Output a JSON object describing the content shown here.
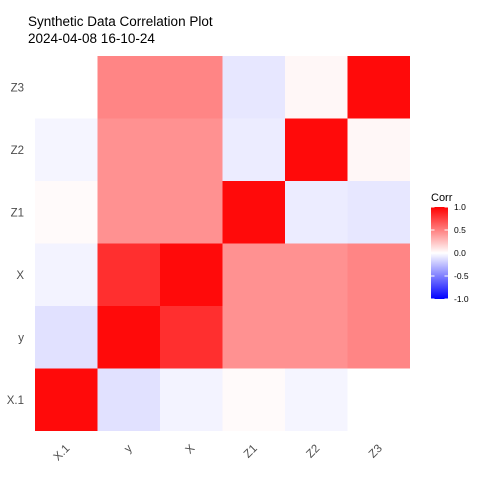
{
  "chart_data": {
    "type": "heatmap",
    "title": "Synthetic Data Correlation Plot",
    "subtitle": "2024-04-08 16-10-24",
    "xlabel": "",
    "ylabel": "",
    "x_categories": [
      "X.1",
      "y",
      "X",
      "Z1",
      "Z2",
      "Z3"
    ],
    "y_categories": [
      "X.1",
      "y",
      "X",
      "Z1",
      "Z2",
      "Z3"
    ],
    "matrix": [
      [
        1.0,
        -0.12,
        -0.05,
        0.02,
        -0.04,
        0.0
      ],
      [
        -0.12,
        1.0,
        0.85,
        0.45,
        0.45,
        0.5
      ],
      [
        -0.05,
        0.85,
        1.0,
        0.45,
        0.45,
        0.5
      ],
      [
        0.02,
        0.45,
        0.45,
        1.0,
        -0.08,
        -0.1
      ],
      [
        -0.04,
        0.45,
        0.45,
        -0.08,
        1.0,
        0.03
      ],
      [
        0.0,
        0.5,
        0.5,
        -0.1,
        0.03,
        1.0
      ]
    ],
    "legend": {
      "title": "Corr",
      "ticks": [
        "1.0",
        "0.5",
        "0.0",
        "-0.5",
        "-1.0"
      ],
      "tick_values": [
        1.0,
        0.5,
        0.0,
        -0.5,
        -1.0
      ],
      "range": [
        -1,
        1
      ],
      "low_color": "#0000FF",
      "mid_color": "#FFFFFF",
      "high_color": "#FF0000",
      "placement": "right"
    },
    "grid": true
  }
}
